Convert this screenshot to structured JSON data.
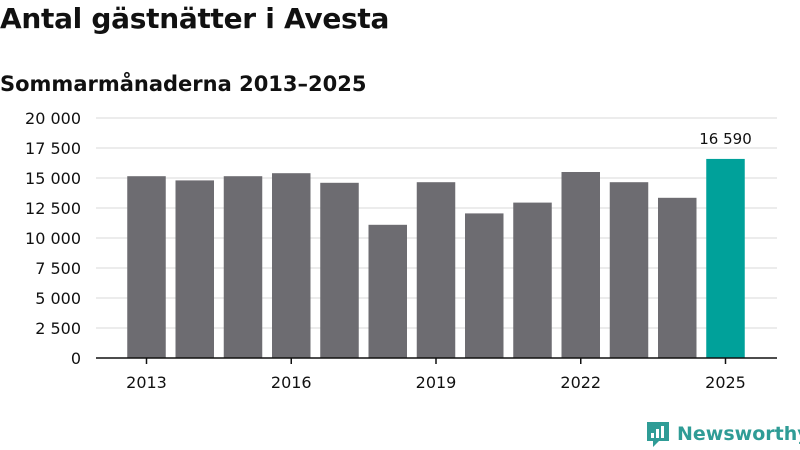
{
  "title": "Antal gästnätter i Avesta",
  "subtitle": "Sommarmånaderna 2013–2025",
  "brand": {
    "name": "Newsworthy",
    "icon": "newsworthy-logo-icon",
    "color": "#2f9c96"
  },
  "colors": {
    "bar": "#6d6c71",
    "highlight": "#00a19a",
    "grid": "#d9d9d9",
    "axis": "#111111"
  },
  "chart_data": {
    "type": "bar",
    "categories": [
      "2013",
      "2014",
      "2015",
      "2016",
      "2017",
      "2018",
      "2019",
      "2020",
      "2021",
      "2022",
      "2023",
      "2024",
      "2025"
    ],
    "values": [
      15150,
      14800,
      15150,
      15400,
      14600,
      11100,
      14650,
      12050,
      12950,
      15500,
      14650,
      13350,
      16590
    ],
    "highlight_index": 12,
    "data_labels": [
      {
        "index": 12,
        "text": "16 590"
      }
    ],
    "x_tick_labels": [
      "2013",
      "2016",
      "2019",
      "2022",
      "2025"
    ],
    "y_tick_labels": [
      "0",
      "2 500",
      "5 000",
      "7 500",
      "10 000",
      "12 500",
      "15 000",
      "17 500",
      "20 000"
    ],
    "ylim": [
      0,
      20000
    ],
    "grid": true,
    "legend": "none",
    "xlabel": "",
    "ylabel": ""
  }
}
